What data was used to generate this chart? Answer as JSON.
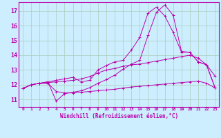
{
  "title": "",
  "xlabel": "Windchill (Refroidissement éolien,°C)",
  "ylabel": "",
  "bg_color": "#cceeff",
  "grid_color": "#aaccbb",
  "line_color": "#bb00aa",
  "xlim": [
    -0.5,
    23.5
  ],
  "ylim": [
    10.5,
    17.6
  ],
  "yticks": [
    11,
    12,
    13,
    14,
    15,
    16,
    17
  ],
  "xticks": [
    0,
    1,
    2,
    3,
    4,
    5,
    6,
    7,
    8,
    9,
    10,
    11,
    12,
    13,
    14,
    15,
    16,
    17,
    18,
    19,
    20,
    21,
    22,
    23
  ],
  "lines": [
    {
      "x": [
        0,
        1,
        2,
        3,
        4,
        5,
        6,
        7,
        8,
        9,
        10,
        11,
        12,
        13,
        14,
        15,
        16,
        17,
        18,
        19,
        20,
        21,
        22,
        23
      ],
      "y": [
        11.75,
        12.0,
        12.1,
        12.1,
        11.55,
        11.45,
        11.45,
        11.5,
        11.55,
        11.6,
        11.65,
        11.7,
        11.78,
        11.85,
        11.9,
        11.95,
        12.0,
        12.05,
        12.1,
        12.15,
        12.2,
        12.25,
        12.1,
        11.8
      ]
    },
    {
      "x": [
        0,
        1,
        2,
        3,
        4,
        5,
        6,
        7,
        8,
        9,
        10,
        11,
        12,
        13,
        14,
        15,
        16,
        17,
        18,
        19,
        20,
        21,
        22,
        23
      ],
      "y": [
        11.75,
        12.0,
        12.1,
        12.15,
        12.2,
        12.25,
        12.3,
        12.4,
        12.55,
        12.8,
        13.0,
        13.1,
        13.25,
        13.35,
        13.4,
        13.5,
        13.6,
        13.7,
        13.8,
        13.9,
        14.0,
        13.8,
        13.35,
        12.6
      ]
    },
    {
      "x": [
        0,
        1,
        2,
        3,
        4,
        5,
        6,
        7,
        8,
        9,
        10,
        11,
        12,
        13,
        14,
        15,
        16,
        17,
        18,
        19,
        20,
        21,
        22,
        23
      ],
      "y": [
        11.75,
        12.0,
        12.1,
        12.2,
        12.3,
        12.4,
        12.5,
        12.2,
        12.3,
        13.0,
        13.3,
        13.55,
        13.65,
        14.35,
        15.2,
        16.85,
        17.25,
        16.65,
        15.55,
        14.2,
        14.2,
        13.55,
        13.35,
        11.82
      ]
    },
    {
      "x": [
        0,
        1,
        2,
        3,
        4,
        5,
        6,
        7,
        8,
        9,
        10,
        11,
        12,
        13,
        14,
        15,
        16,
        17,
        18,
        19,
        20,
        21,
        22,
        23
      ],
      "y": [
        11.75,
        12.0,
        12.1,
        12.2,
        10.9,
        11.4,
        11.5,
        11.6,
        11.8,
        12.1,
        12.35,
        12.65,
        13.05,
        13.4,
        13.65,
        15.35,
        16.9,
        17.4,
        16.7,
        14.25,
        14.2,
        13.55,
        13.35,
        11.82
      ]
    }
  ]
}
